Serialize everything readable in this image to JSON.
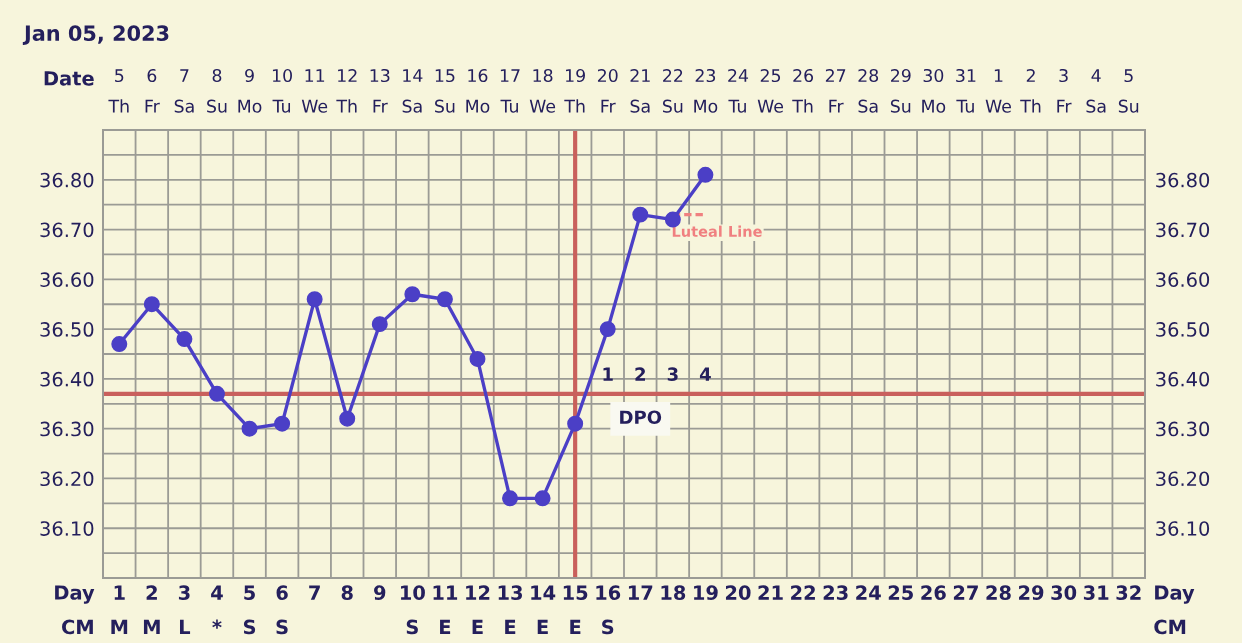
{
  "chart_data": {
    "type": "line",
    "title": "Jan 05, 2023",
    "xlabel": "Day\nCM",
    "x2label": "Date",
    "categories": [
      "1\nM",
      "2\nM",
      "3\nL",
      "4\n*",
      "5\nS",
      "6\nS",
      "7",
      "8",
      "9",
      "10\nS",
      "11\nE",
      "12\nE",
      "13\nE",
      "14\nE",
      "15\nE",
      "16\nS",
      "17",
      "18",
      "19",
      "20",
      "21",
      "22",
      "23",
      "24",
      "25",
      "26",
      "27",
      "28",
      "29",
      "30",
      "31",
      "32"
    ],
    "series": [
      {
        "color": "#4b3fc6",
        "marker": "circle",
        "values": [
          36.47,
          36.55,
          36.48,
          36.37,
          36.3,
          36.31,
          36.56,
          36.32,
          36.51,
          36.57,
          36.56,
          36.44,
          36.16,
          36.16,
          36.31,
          36.5,
          36.73,
          36.72,
          36.81,
          null,
          null,
          null,
          null,
          null,
          null,
          null,
          null,
          null,
          null,
          null,
          null,
          null
        ]
      },
      {
        "type": "line",
        "name": "Luteal Line",
        "color": "#f08080",
        "marker": "none",
        "line_style": "dashed",
        "x": [
          "18",
          "19"
        ],
        "values": [
          36.73,
          36.73
        ]
      }
    ],
    "ylim": [
      36.0,
      36.9
    ],
    "yticks": [
      {
        "value": 36.05,
        "label": null
      },
      {
        "value": 36.1,
        "label": "36.10"
      },
      {
        "value": 36.15,
        "label": null
      },
      {
        "value": 36.2,
        "label": "36.20"
      },
      {
        "value": 36.25,
        "label": null
      },
      {
        "value": 36.3,
        "label": "36.30"
      },
      {
        "value": 36.35,
        "label": null
      },
      {
        "value": 36.4,
        "label": "36.40"
      },
      {
        "value": 36.45,
        "label": null
      },
      {
        "value": 36.5,
        "label": "36.50"
      },
      {
        "value": 36.55,
        "label": null
      },
      {
        "value": 36.6,
        "label": "36.60"
      },
      {
        "value": 36.65,
        "label": null
      },
      {
        "value": 36.7,
        "label": "36.70"
      },
      {
        "value": 36.75,
        "label": null
      },
      {
        "value": 36.8,
        "label": "36.80"
      },
      {
        "value": 36.85,
        "label": null
      }
    ],
    "y2lim": [
      36.0,
      36.9
    ],
    "y2ticks": [
      {
        "value": 36.05,
        "label": null
      },
      {
        "value": 36.1,
        "label": "36.10"
      },
      {
        "value": 36.15,
        "label": null
      },
      {
        "value": 36.2,
        "label": "36.20"
      },
      {
        "value": 36.25,
        "label": null
      },
      {
        "value": 36.3,
        "label": "36.30"
      },
      {
        "value": 36.35,
        "label": null
      },
      {
        "value": 36.4,
        "label": "36.40"
      },
      {
        "value": 36.45,
        "label": null
      },
      {
        "value": 36.5,
        "label": "36.50"
      },
      {
        "value": 36.55,
        "label": null
      },
      {
        "value": 36.6,
        "label": "36.60"
      },
      {
        "value": 36.65,
        "label": null
      },
      {
        "value": 36.7,
        "label": "36.70"
      },
      {
        "value": 36.75,
        "label": null
      },
      {
        "value": 36.8,
        "label": "36.80"
      },
      {
        "value": 36.85,
        "label": null
      }
    ],
    "x2lim": [
      "2023-01-04T12:00",
      "2023-02-05T12:00"
    ],
    "x2ticks": [
      {
        "value": "2023-01-05",
        "label": "5\nTh"
      },
      {
        "value": "2023-01-06",
        "label": "6\nFr"
      },
      {
        "value": "2023-01-07",
        "label": "7\nSa"
      },
      {
        "value": "2023-01-08",
        "label": "8\nSu"
      },
      {
        "value": "2023-01-09",
        "label": "9\nMo"
      },
      {
        "value": "2023-01-10",
        "label": "10\nTu"
      },
      {
        "value": "2023-01-11",
        "label": "11\nWe"
      },
      {
        "value": "2023-01-12",
        "label": "12\nTh"
      },
      {
        "value": "2023-01-13",
        "label": "13\nFr"
      },
      {
        "value": "2023-01-14",
        "label": "14\nSa"
      },
      {
        "value": "2023-01-15",
        "label": "15\nSu"
      },
      {
        "value": "2023-01-16",
        "label": "16\nMo"
      },
      {
        "value": "2023-01-17",
        "label": "17\nTu"
      },
      {
        "value": "2023-01-18",
        "label": "18\nWe"
      },
      {
        "value": "2023-01-19",
        "label": "19\nTh"
      },
      {
        "value": "2023-01-20",
        "label": "20\nFr"
      },
      {
        "value": "2023-01-21",
        "label": "21\nSa"
      },
      {
        "value": "2023-01-22",
        "label": "22\nSu"
      },
      {
        "value": "2023-01-23",
        "label": "23\nMo"
      },
      {
        "value": "2023-01-24",
        "label": "24\nTu"
      },
      {
        "value": "2023-01-25",
        "label": "25\nWe"
      },
      {
        "value": "2023-01-26",
        "label": "26\nTh"
      },
      {
        "value": "2023-01-27",
        "label": "27\nFr"
      },
      {
        "value": "2023-01-28",
        "label": "28\nSa"
      },
      {
        "value": "2023-01-29",
        "label": "29\nSu"
      },
      {
        "value": "2023-01-30",
        "label": "30\nMo"
      },
      {
        "value": "2023-01-31",
        "label": "31\nTu"
      },
      {
        "value": "2023-02-01",
        "label": "1\nWe"
      },
      {
        "value": "2023-02-02",
        "label": "2\nTh"
      },
      {
        "value": "2023-02-03",
        "label": "3\nFr"
      },
      {
        "value": "2023-02-04",
        "label": "4\nSa"
      },
      {
        "value": "2023-02-05",
        "label": "5\nSu"
      }
    ],
    "ref_lines": [
      {
        "axis": "y",
        "value": 36.37,
        "color": "#c9605c"
      },
      {
        "axis": "x",
        "value": "15\nE",
        "color": "#c9605c"
      }
    ],
    "annotations": [
      {
        "text": "1",
        "x": "16\nS",
        "y": 36.37
      },
      {
        "text": "2",
        "x": "17",
        "y": 36.37
      },
      {
        "text": "3",
        "x": "18",
        "y": 36.37
      },
      {
        "text": "4",
        "x": "19",
        "y": 36.37
      },
      {
        "text": "DPO",
        "x": "17",
        "y": 36.37
      }
    ],
    "grid": true
  }
}
